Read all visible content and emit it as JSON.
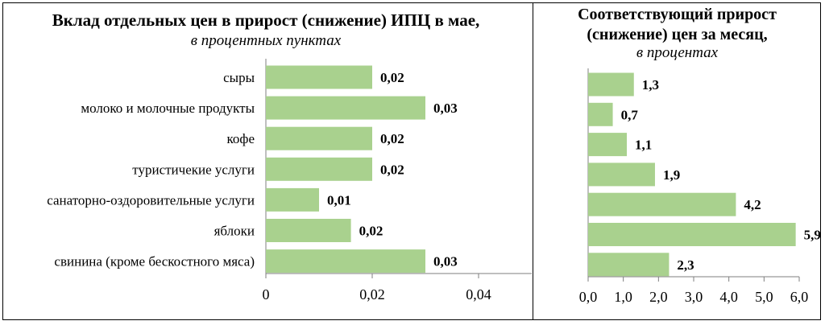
{
  "charts": {
    "left": {
      "title": "Вклад отдельных цен в прирост (снижение) ИПЦ в мае,",
      "subtitle": "в процентных пунктах"
    },
    "right": {
      "title_line1": "Соответствующий прирост",
      "title_line2": "(снижение) цен за месяц,",
      "subtitle": "в процентах"
    }
  },
  "chart_data": [
    {
      "type": "bar",
      "orientation": "horizontal",
      "title": "Вклад отдельных цен в прирост (снижение) ИПЦ в мае,",
      "subtitle": "в процентных пунктах",
      "categories": [
        "сыры",
        "молоко и молочные продукты",
        "кофе",
        "туристичекие услуги",
        "санаторно-оздоровительные услуги",
        "яблоки",
        "свинина (кроме бескостного мяса)"
      ],
      "values": [
        0.02,
        0.03,
        0.02,
        0.02,
        0.01,
        0.016,
        0.03
      ],
      "data_labels": [
        "0,02",
        "0,03",
        "0,02",
        "0,02",
        "0,01",
        "0,02",
        "0,03"
      ],
      "xlim": [
        0,
        0.05
      ],
      "ticks": [
        0,
        0.02,
        0.04
      ],
      "tick_labels": [
        "0",
        "0,02",
        "0,04"
      ],
      "bar_color": "#a9d18e",
      "grid": false
    },
    {
      "type": "bar",
      "orientation": "horizontal",
      "title": "Соответствующий прирост (снижение) цен за месяц,",
      "subtitle": "в процентах",
      "categories": [
        "сыры",
        "молоко и молочные продукты",
        "кофе",
        "туристичекие услуги",
        "санаторно-оздоровительные услуги",
        "яблоки",
        "свинина (кроме бескостного мяса)"
      ],
      "values": [
        1.3,
        0.7,
        1.1,
        1.9,
        4.2,
        5.9,
        2.3
      ],
      "data_labels": [
        "1,3",
        "0,7",
        "1,1",
        "1,9",
        "4,2",
        "5,9",
        "2,3"
      ],
      "xlim": [
        0,
        6
      ],
      "ticks": [
        0,
        1,
        2,
        3,
        4,
        5,
        6
      ],
      "tick_labels": [
        "0,0",
        "1,0",
        "2,0",
        "3,0",
        "4,0",
        "5,0",
        "6,0"
      ],
      "bar_color": "#a9d18e",
      "grid": false
    }
  ]
}
